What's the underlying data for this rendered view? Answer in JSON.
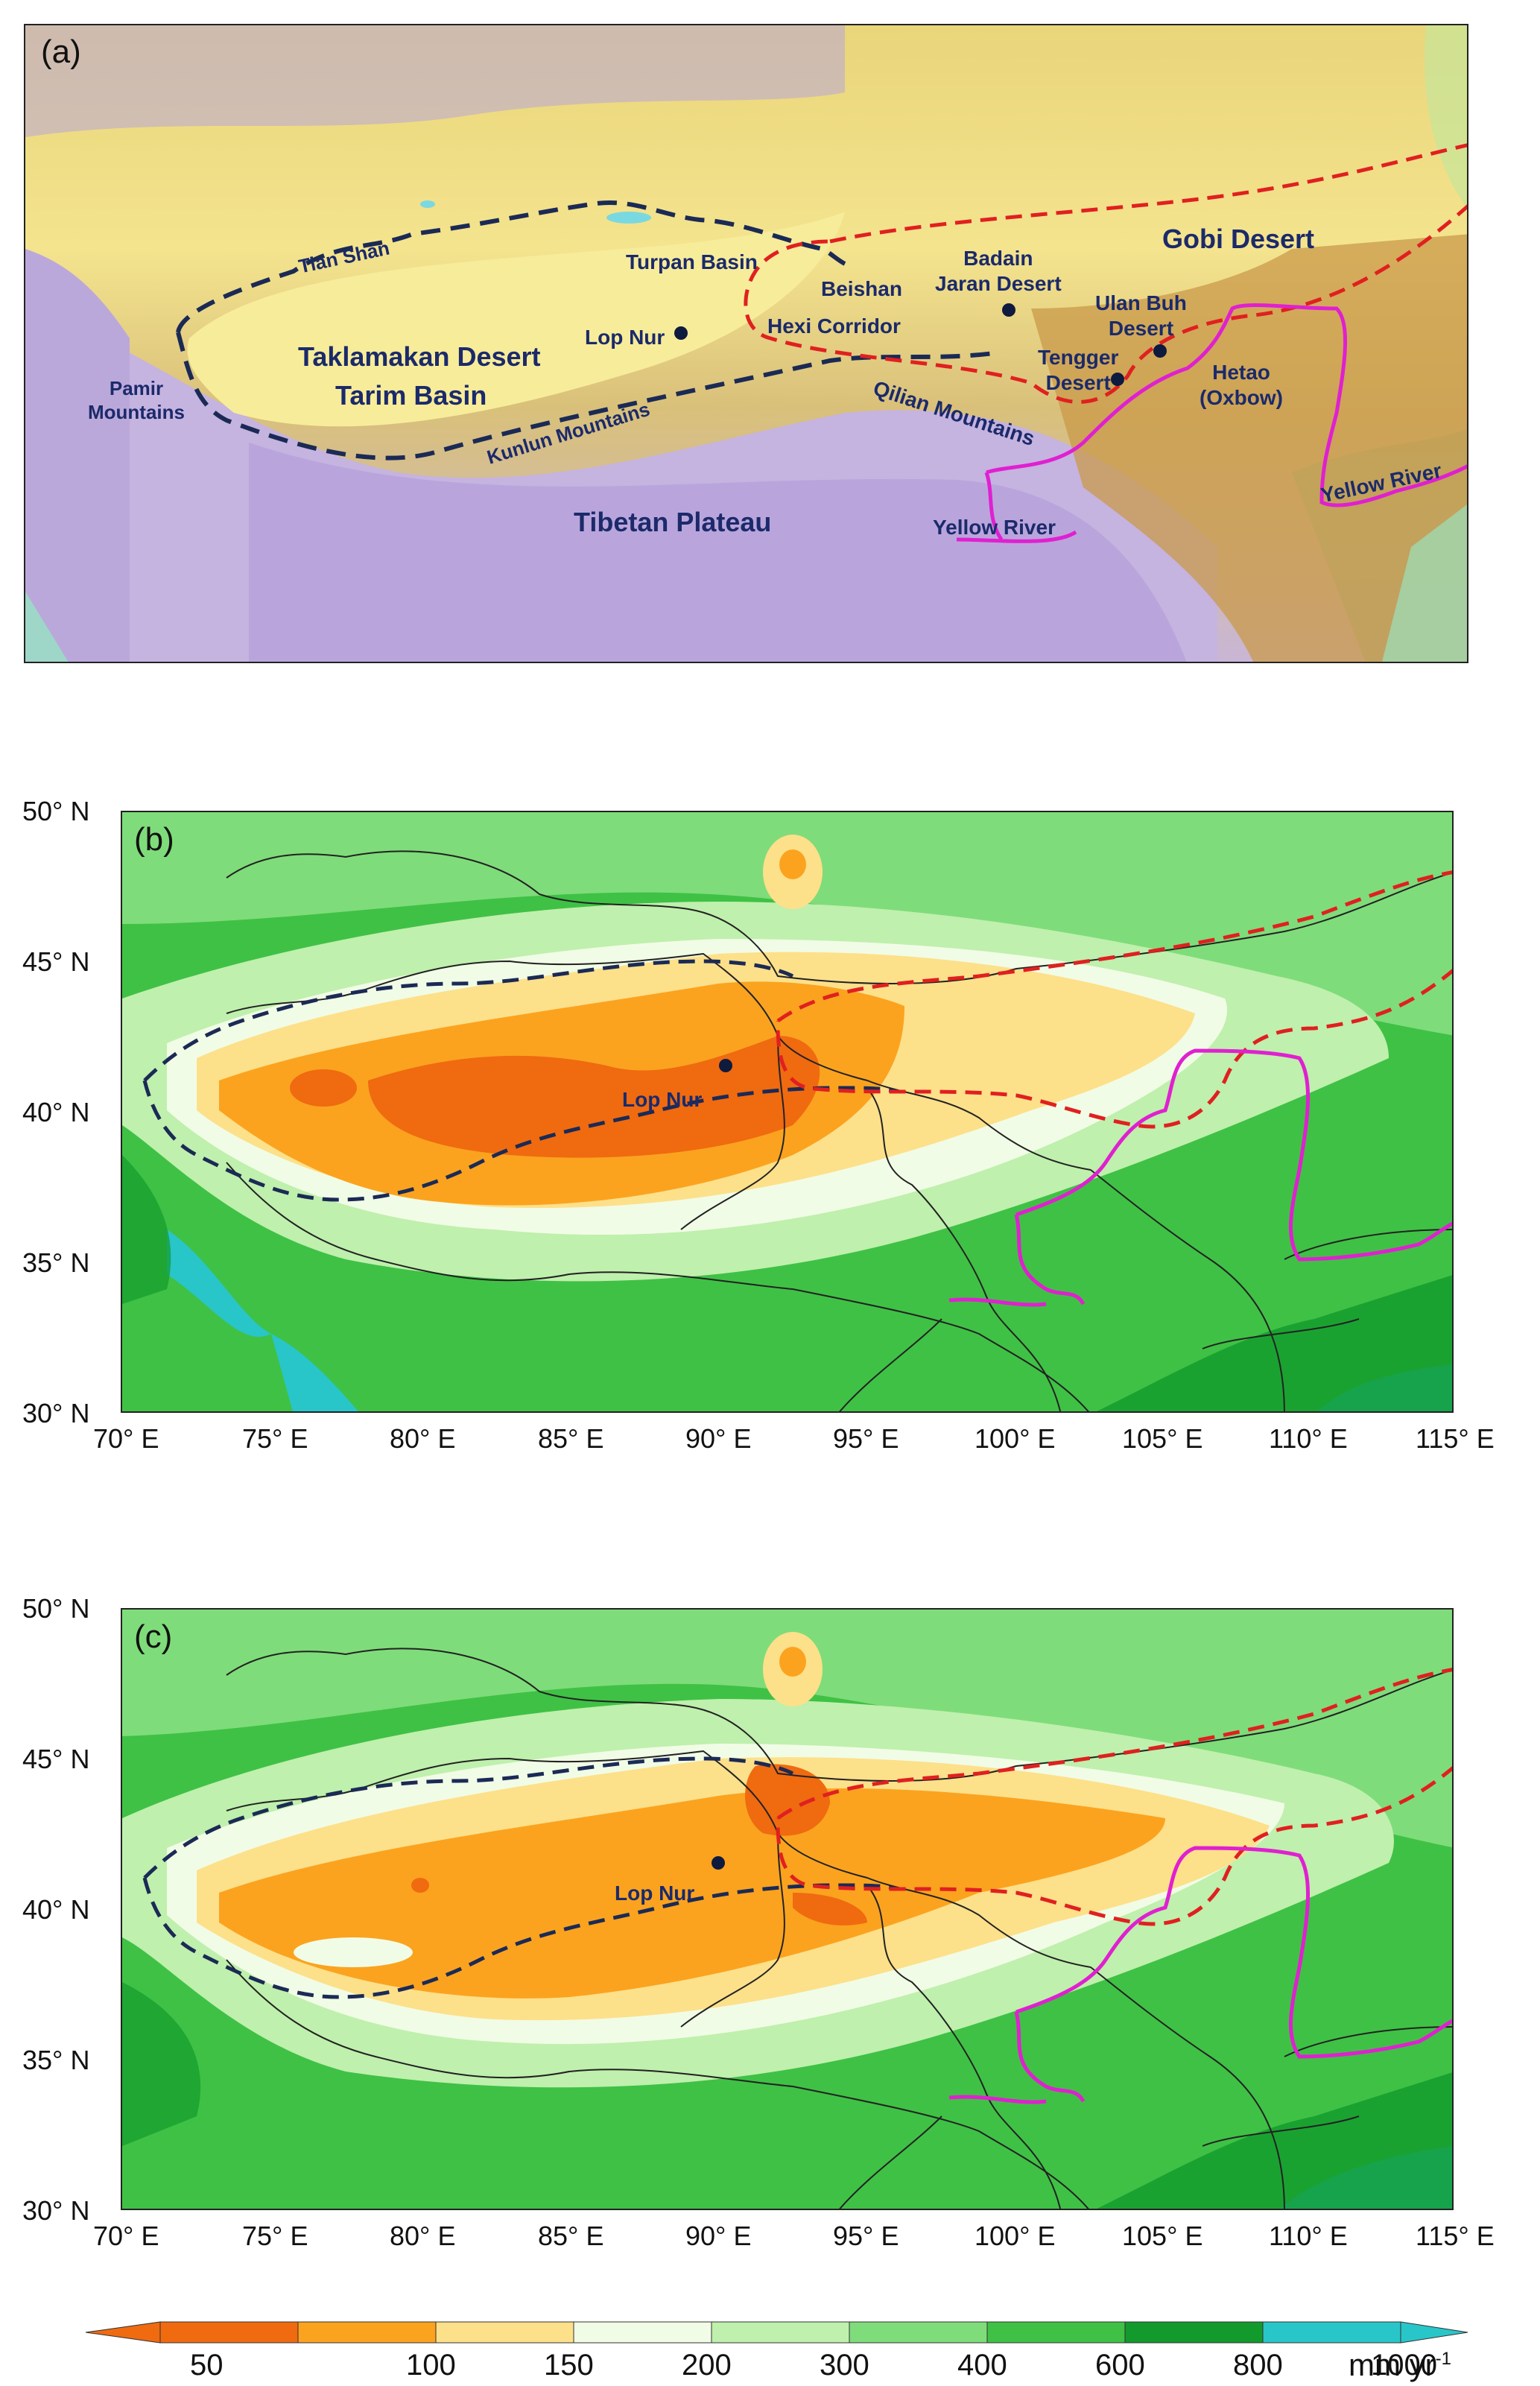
{
  "panels": {
    "a": {
      "label": "(a)",
      "places": [
        {
          "id": "tian-shan",
          "text": "Tian Shan"
        },
        {
          "id": "turpan-basin",
          "text": "Turpan Basin"
        },
        {
          "id": "pamir",
          "text": "Pamir\nMountains"
        },
        {
          "id": "taklamakan",
          "text": "Taklamakan Desert"
        },
        {
          "id": "tarim",
          "text": "Tarim Basin"
        },
        {
          "id": "lop-nur",
          "text": "Lop Nur"
        },
        {
          "id": "beishan",
          "text": "Beishan"
        },
        {
          "id": "badain",
          "text": "Badain\nJaran Desert"
        },
        {
          "id": "gobi",
          "text": "Gobi Desert"
        },
        {
          "id": "hexi",
          "text": "Hexi Corridor"
        },
        {
          "id": "ulan-buh",
          "text": "Ulan Buh\nDesert"
        },
        {
          "id": "tengger",
          "text": "Tengger\nDesert"
        },
        {
          "id": "hetao",
          "text": "Hetao\n(Oxbow)"
        },
        {
          "id": "qilian",
          "text": "Qilian Mountains"
        },
        {
          "id": "kunlun",
          "text": "Kunlun Mountains"
        },
        {
          "id": "tibetan",
          "text": "Tibetan Plateau"
        },
        {
          "id": "yellow-river-1",
          "text": "Yellow River"
        },
        {
          "id": "yellow-river-2",
          "text": "Yellow River"
        }
      ]
    },
    "b": {
      "label": "(b)",
      "marker": "Lop Nur"
    },
    "c": {
      "label": "(c)",
      "marker": "Lop Nur"
    }
  },
  "axes": {
    "x_ticks": [
      "70° E",
      "75° E",
      "80° E",
      "85° E",
      "90° E",
      "95° E",
      "100° E",
      "105° E",
      "110° E",
      "115° E"
    ],
    "y_ticks": [
      "50° N",
      "45° N",
      "40° N",
      "35° N",
      "30° N"
    ]
  },
  "colorbar": {
    "ticks": [
      "50",
      "100",
      "150",
      "200",
      "300",
      "400",
      "600",
      "800",
      "1000"
    ],
    "unit": "mm yr",
    "unit_exp": "-1",
    "colors": [
      "#f06a10",
      "#fba31f",
      "#fde08a",
      "#f1fce6",
      "#bff0ad",
      "#7fdc7a",
      "#3fc145",
      "#129a2c",
      "#28c6c9"
    ]
  },
  "legend_colors": {
    "taklamakan_boundary": "#1b2a55",
    "gobi_boundary": "#e02020",
    "yellow_river": "#e020d0"
  }
}
